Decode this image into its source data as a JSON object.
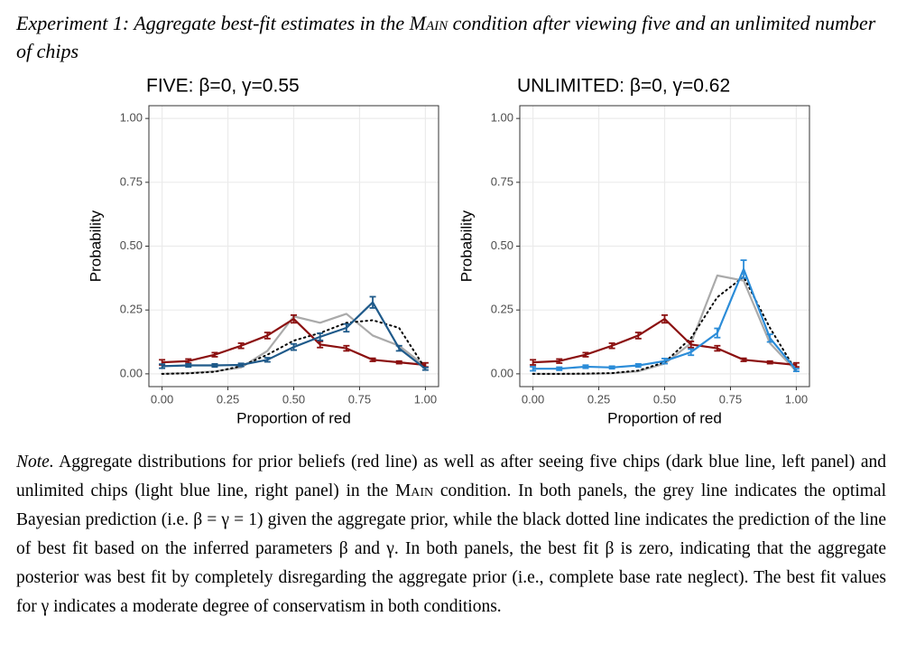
{
  "caption": {
    "parts": [
      "Experiment 1: Aggregate best-fit estimates in the ",
      "Main",
      " condition after viewing five and an unlimited number of chips"
    ]
  },
  "chart_data": [
    {
      "type": "line",
      "title": "FIVE: β=0, γ=0.55",
      "xlabel": "Proportion of red",
      "ylabel": "Probability",
      "x": [
        0,
        0.1,
        0.2,
        0.3,
        0.4,
        0.5,
        0.6,
        0.7,
        0.8,
        0.9,
        1.0
      ],
      "xlim": [
        -0.05,
        1.05
      ],
      "ylim": [
        -0.05,
        1.05
      ],
      "xticks": [
        {
          "value": 0,
          "label": "0.00"
        },
        {
          "value": 0.25,
          "label": "0.25"
        },
        {
          "value": 0.5,
          "label": "0.50"
        },
        {
          "value": 0.75,
          "label": "0.75"
        },
        {
          "value": 1,
          "label": "1.00"
        }
      ],
      "yticks": [
        {
          "value": 0,
          "label": "0.00"
        },
        {
          "value": 0.25,
          "label": "0.25"
        },
        {
          "value": 0.5,
          "label": "0.50"
        },
        {
          "value": 0.75,
          "label": "0.75"
        },
        {
          "value": 1,
          "label": "1.00"
        }
      ],
      "grid": true,
      "series": [
        {
          "color": "#aaaaaa",
          "linestyle": "solid",
          "values": [
            0,
            0.003,
            0.01,
            0.025,
            0.09,
            0.225,
            0.2,
            0.235,
            0.15,
            0.11,
            0.03
          ]
        },
        {
          "color": "#000000",
          "linestyle": "dotted",
          "values": [
            0,
            0.002,
            0.008,
            0.03,
            0.075,
            0.13,
            0.16,
            0.2,
            0.21,
            0.18,
            0.02
          ]
        },
        {
          "color": "#8b1010",
          "linestyle": "solid",
          "values": [
            0.045,
            0.05,
            0.075,
            0.11,
            0.15,
            0.215,
            0.115,
            0.1,
            0.055,
            0.045,
            0.035
          ],
          "errors": [
            0.01,
            0.008,
            0.008,
            0.01,
            0.012,
            0.015,
            0.012,
            0.01,
            0.006,
            0.005,
            0.008
          ]
        },
        {
          "color": "#1f5a8a",
          "linestyle": "solid",
          "values": [
            0.03,
            0.033,
            0.033,
            0.035,
            0.055,
            0.105,
            0.145,
            0.18,
            0.28,
            0.1,
            0.02
          ],
          "errors": [
            0.008,
            0.006,
            0.006,
            0.006,
            0.008,
            0.012,
            0.014,
            0.015,
            0.022,
            0.01,
            0.005
          ]
        }
      ]
    },
    {
      "type": "line",
      "title": "UNLIMITED: β=0, γ=0.62",
      "xlabel": "Proportion of red",
      "ylabel": "Probability",
      "x": [
        0,
        0.1,
        0.2,
        0.3,
        0.4,
        0.5,
        0.6,
        0.7,
        0.8,
        0.9,
        1.0
      ],
      "xlim": [
        -0.05,
        1.05
      ],
      "ylim": [
        -0.05,
        1.05
      ],
      "xticks": [
        {
          "value": 0,
          "label": "0.00"
        },
        {
          "value": 0.25,
          "label": "0.25"
        },
        {
          "value": 0.5,
          "label": "0.50"
        },
        {
          "value": 0.75,
          "label": "0.75"
        },
        {
          "value": 1,
          "label": "1.00"
        }
      ],
      "yticks": [
        {
          "value": 0,
          "label": "0.00"
        },
        {
          "value": 0.25,
          "label": "0.25"
        },
        {
          "value": 0.5,
          "label": "0.50"
        },
        {
          "value": 0.75,
          "label": "0.75"
        },
        {
          "value": 1,
          "label": "1.00"
        }
      ],
      "grid": true,
      "series": [
        {
          "color": "#aaaaaa",
          "linestyle": "solid",
          "values": [
            0,
            0,
            0,
            0.002,
            0.01,
            0.04,
            0.12,
            0.385,
            0.365,
            0.12,
            0.01
          ]
        },
        {
          "color": "#000000",
          "linestyle": "dotted",
          "values": [
            0,
            0,
            0.001,
            0.003,
            0.013,
            0.045,
            0.14,
            0.3,
            0.38,
            0.18,
            0.01
          ]
        },
        {
          "color": "#8b1010",
          "linestyle": "solid",
          "values": [
            0.045,
            0.05,
            0.075,
            0.11,
            0.15,
            0.215,
            0.115,
            0.1,
            0.055,
            0.045,
            0.035
          ],
          "errors": [
            0.01,
            0.008,
            0.008,
            0.01,
            0.012,
            0.015,
            0.012,
            0.01,
            0.006,
            0.005,
            0.008
          ]
        },
        {
          "color": "#2b8cd8",
          "linestyle": "solid",
          "values": [
            0.02,
            0.02,
            0.028,
            0.025,
            0.033,
            0.05,
            0.085,
            0.16,
            0.41,
            0.14,
            0.015
          ],
          "errors": [
            0.008,
            0.006,
            0.006,
            0.005,
            0.006,
            0.01,
            0.012,
            0.018,
            0.035,
            0.015,
            0.005
          ]
        }
      ]
    }
  ],
  "note": {
    "label": "Note.",
    "parts": [
      " Aggregate distributions for prior beliefs (red line) as well as after seeing five chips (dark blue line, left panel) and unlimited chips (light blue line, right panel) in the ",
      "Main",
      " condition. In both panels, the grey line indicates the optimal Bayesian prediction (i.e. β = γ = 1) given the aggregate prior, while the black dotted line indicates the prediction of the line of best fit based on the inferred parameters β and γ. In both panels, the best fit β is zero, indicating that the aggregate posterior was best fit by completely disregarding the aggregate prior (i.e., complete base rate neglect). The best fit values for γ indicates a moderate degree of conservatism in both conditions."
    ]
  }
}
